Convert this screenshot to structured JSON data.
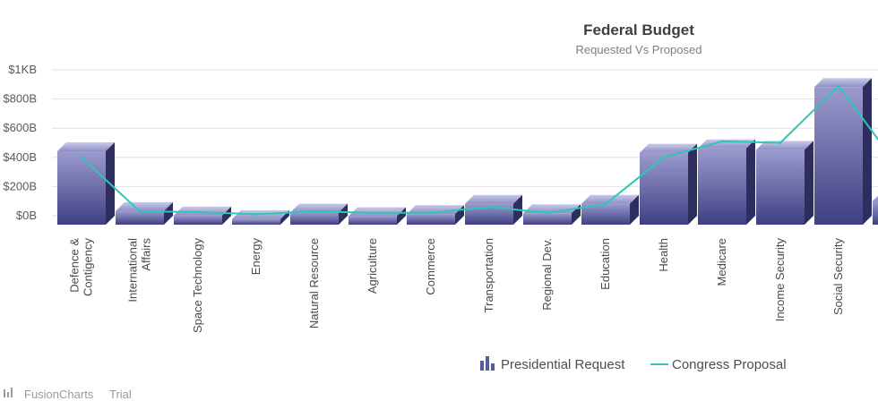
{
  "chart_data": {
    "type": "bar",
    "title": "Federal Budget",
    "subtitle": "Requested Vs Proposed",
    "xlabel": "",
    "ylabel": "",
    "ylim": [
      0,
      1000
    ],
    "y_ticks": [
      "$0B",
      "$200B",
      "$400B",
      "$600B",
      "$800B",
      "$1KB"
    ],
    "grid": true,
    "legend_position": "bottom",
    "categories": [
      [
        "Defence &",
        "Contigency"
      ],
      [
        "International",
        "Affairs"
      ],
      [
        "Space Technology"
      ],
      [
        "Energy"
      ],
      [
        "Natural Resource"
      ],
      [
        "Agriculture"
      ],
      [
        "Commerce"
      ],
      [
        "Transportation"
      ],
      [
        "Regional Dev."
      ],
      [
        "Education"
      ],
      [
        "Health"
      ],
      [
        "Medicare"
      ],
      [
        "Income Security"
      ],
      [
        "Social Security"
      ],
      [
        ""
      ]
    ],
    "series": [
      {
        "name": "Presidential Request",
        "kind": "bar",
        "color": "#6f6fb0",
        "values": [
          460,
          50,
          20,
          -5,
          40,
          15,
          30,
          100,
          35,
          100,
          450,
          480,
          470,
          900,
          120
        ]
      },
      {
        "name": "Congress Proposal",
        "kind": "line",
        "color": "#2ec6b6",
        "values": [
          400,
          30,
          25,
          10,
          30,
          20,
          20,
          60,
          20,
          80,
          400,
          510,
          500,
          890,
          350
        ]
      }
    ]
  },
  "watermark": {
    "brand": "FusionCharts",
    "suffix": "Trial"
  }
}
